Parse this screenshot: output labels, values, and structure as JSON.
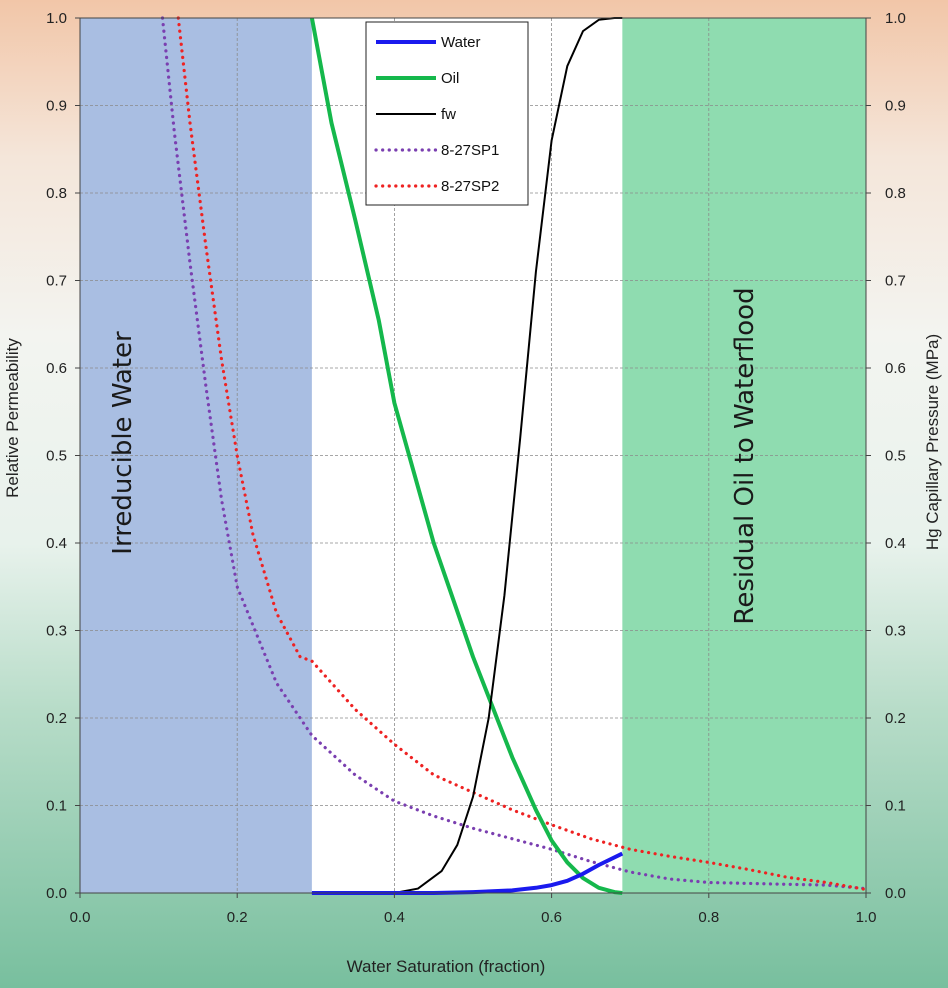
{
  "chart_data": {
    "type": "line",
    "xlabel": "Water Saturation (fraction)",
    "ylabel": "Relative Permeability",
    "y2label": "Hg Capillary Pressure (MPa)",
    "xlim": [
      0,
      1
    ],
    "ylim": [
      0,
      1
    ],
    "y2lim": [
      0,
      1
    ],
    "grid": true,
    "legend_position": "top-center",
    "x_ticks": [
      "0.0",
      "0.2",
      "0.4",
      "0.6",
      "0.8",
      "1.0"
    ],
    "y_ticks": [
      "0.0",
      "0.1",
      "0.2",
      "0.3",
      "0.4",
      "0.5",
      "0.6",
      "0.7",
      "0.8",
      "0.9",
      "1.0"
    ],
    "y2_ticks": [
      "0.0",
      "0.1",
      "0.2",
      "0.3",
      "0.4",
      "0.5",
      "0.6",
      "0.7",
      "0.8",
      "0.9",
      "1.0"
    ],
    "regions": [
      {
        "label": "Irreducible Water",
        "x_range": [
          0,
          0.295
        ],
        "color": "#a9bee2"
      },
      {
        "label": "Residual Oil to Waterflood",
        "x_range": [
          0.69,
          1.0
        ],
        "color": "#8fdcb0"
      }
    ],
    "series": [
      {
        "name": "Water",
        "color": "#1a1aee",
        "style": "solid",
        "x": [
          0.295,
          0.4,
          0.45,
          0.5,
          0.55,
          0.58,
          0.6,
          0.62,
          0.64,
          0.66,
          0.69
        ],
        "y": [
          0.0,
          0.0,
          0.0,
          0.001,
          0.003,
          0.006,
          0.009,
          0.014,
          0.022,
          0.032,
          0.045
        ]
      },
      {
        "name": "Oil",
        "color": "#15b84c",
        "style": "solid",
        "x": [
          0.295,
          0.32,
          0.35,
          0.38,
          0.4,
          0.45,
          0.5,
          0.55,
          0.58,
          0.6,
          0.62,
          0.64,
          0.66,
          0.68,
          0.69
        ],
        "y": [
          1.0,
          0.88,
          0.77,
          0.655,
          0.56,
          0.4,
          0.27,
          0.155,
          0.095,
          0.06,
          0.035,
          0.017,
          0.006,
          0.001,
          0.0
        ]
      },
      {
        "name": "fw",
        "color": "#000000",
        "style": "solid",
        "x": [
          0.295,
          0.4,
          0.43,
          0.46,
          0.48,
          0.5,
          0.52,
          0.54,
          0.56,
          0.58,
          0.6,
          0.62,
          0.64,
          0.66,
          0.68,
          0.69
        ],
        "y": [
          0.0,
          0.0,
          0.005,
          0.025,
          0.055,
          0.11,
          0.2,
          0.34,
          0.52,
          0.71,
          0.86,
          0.945,
          0.985,
          0.998,
          1.0,
          1.0
        ]
      },
      {
        "name": "8-27SP1",
        "color": "#7a3fb0",
        "style": "dotted",
        "x": [
          0.105,
          0.12,
          0.14,
          0.16,
          0.18,
          0.2,
          0.25,
          0.295,
          0.35,
          0.4,
          0.45,
          0.5,
          0.55,
          0.6,
          0.65,
          0.7,
          0.75,
          0.8,
          0.85,
          0.9,
          0.95,
          1.0
        ],
        "y": [
          1.0,
          0.87,
          0.72,
          0.58,
          0.45,
          0.35,
          0.24,
          0.18,
          0.135,
          0.105,
          0.088,
          0.074,
          0.062,
          0.05,
          0.036,
          0.024,
          0.016,
          0.012,
          0.011,
          0.01,
          0.009,
          0.005
        ]
      },
      {
        "name": "8-27SP2",
        "color": "#ee2222",
        "style": "dotted",
        "x": [
          0.125,
          0.14,
          0.16,
          0.18,
          0.2,
          0.22,
          0.25,
          0.28,
          0.295,
          0.35,
          0.4,
          0.45,
          0.5,
          0.55,
          0.6,
          0.65,
          0.7,
          0.75,
          0.8,
          0.85,
          0.9,
          0.95,
          1.0
        ],
        "y": [
          1.0,
          0.88,
          0.74,
          0.61,
          0.5,
          0.41,
          0.32,
          0.27,
          0.265,
          0.21,
          0.17,
          0.135,
          0.115,
          0.095,
          0.078,
          0.062,
          0.05,
          0.042,
          0.035,
          0.027,
          0.018,
          0.012,
          0.004
        ]
      }
    ]
  }
}
